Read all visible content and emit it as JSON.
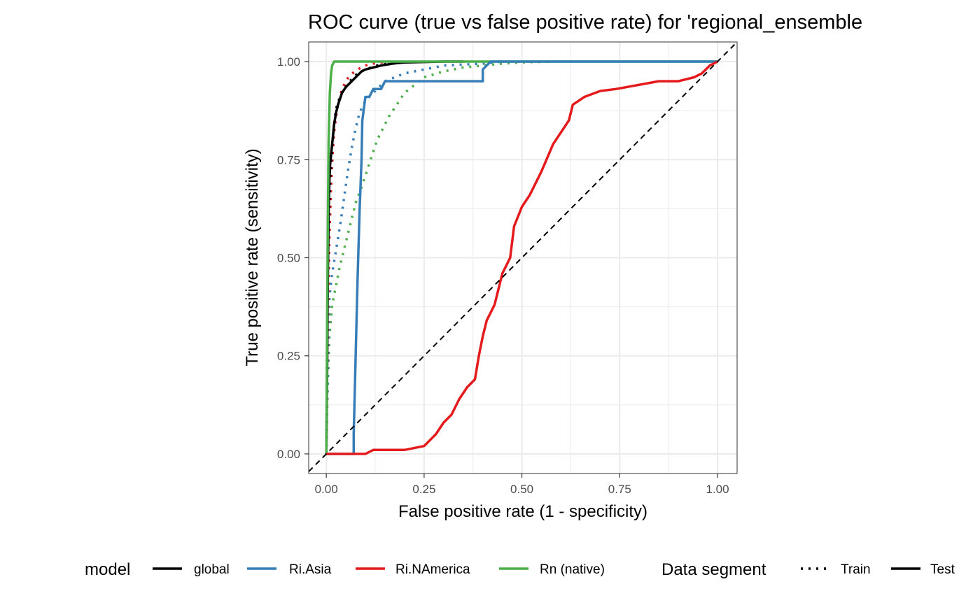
{
  "chart_data": {
    "type": "line",
    "title": "ROC curve (true vs false positive rate) for 'regional_ensemble",
    "xlabel": "False positive rate (1 - specificity)",
    "ylabel": "True positive rate (sensitivity)",
    "xlim": [
      -0.045,
      1.05
    ],
    "ylim": [
      -0.05,
      1.05
    ],
    "x_ticks": [
      0.0,
      0.25,
      0.5,
      0.75,
      1.0
    ],
    "y_ticks": [
      0.0,
      0.25,
      0.5,
      0.75,
      1.0
    ],
    "x_tick_labels": [
      "0.00",
      "0.25",
      "0.50",
      "0.75",
      "1.00"
    ],
    "y_tick_labels": [
      "0.00",
      "0.25",
      "0.50",
      "0.75",
      "1.00"
    ],
    "grid": true,
    "reference_line": {
      "from": [
        -0.045,
        -0.045
      ],
      "to": [
        1.05,
        1.05
      ],
      "style": "dashed",
      "color": "#000000"
    },
    "legend": {
      "position": "bottom",
      "model": {
        "title": "model",
        "entries": [
          {
            "label": "global",
            "color": "#000000"
          },
          {
            "label": "Ri.Asia",
            "color": "#377EB8"
          },
          {
            "label": "Ri.NAmerica",
            "color": "#E41A1C"
          },
          {
            "label": "Rn (native)",
            "color": "#4DAF4A"
          }
        ]
      },
      "segment": {
        "title": "Data segment",
        "entries": [
          {
            "label": "Train",
            "linetype": "dotted"
          },
          {
            "label": "Test",
            "linetype": "solid"
          }
        ]
      }
    },
    "series": [
      {
        "model": "Rn (native)",
        "segment": "Train",
        "color": "#4DAF4A",
        "linetype": "dotted",
        "x": [
          0,
          0.003,
          0.008,
          0.015,
          0.025,
          0.035,
          0.045,
          0.055,
          0.065,
          0.075,
          0.09,
          0.11,
          0.13,
          0.16,
          0.2,
          0.25,
          0.3,
          0.35,
          0.4,
          0.45,
          0.5,
          0.58
        ],
        "y": [
          0,
          0.15,
          0.3,
          0.38,
          0.43,
          0.48,
          0.52,
          0.56,
          0.6,
          0.64,
          0.68,
          0.74,
          0.8,
          0.86,
          0.92,
          0.96,
          0.975,
          0.985,
          0.99,
          0.995,
          0.998,
          1.0
        ]
      },
      {
        "model": "Ri.Asia",
        "segment": "Train",
        "color": "#377EB8",
        "linetype": "dotted",
        "x": [
          0,
          0.003,
          0.008,
          0.015,
          0.025,
          0.035,
          0.045,
          0.055,
          0.065,
          0.075,
          0.085,
          0.1,
          0.12,
          0.15,
          0.2,
          0.25,
          0.3,
          0.4,
          0.45
        ],
        "y": [
          0,
          0.2,
          0.4,
          0.46,
          0.52,
          0.58,
          0.65,
          0.72,
          0.78,
          0.83,
          0.87,
          0.9,
          0.92,
          0.95,
          0.97,
          0.98,
          0.99,
          0.995,
          1.0
        ]
      },
      {
        "model": "Ri.NAmerica",
        "segment": "Train",
        "color": "#E41A1C",
        "linetype": "dotted",
        "x": [
          0,
          0.002,
          0.005,
          0.008,
          0.012,
          0.016,
          0.02,
          0.025,
          0.03,
          0.035,
          0.04,
          0.05,
          0.06,
          0.08,
          0.1,
          0.12,
          0.16
        ],
        "y": [
          0,
          0.2,
          0.4,
          0.55,
          0.68,
          0.76,
          0.82,
          0.86,
          0.89,
          0.91,
          0.93,
          0.95,
          0.965,
          0.98,
          0.99,
          0.995,
          1.0
        ]
      },
      {
        "model": "global",
        "segment": "Train",
        "color": "#000000",
        "linetype": "dotted",
        "x": [
          0,
          0.002,
          0.005,
          0.01,
          0.015,
          0.02,
          0.025,
          0.035,
          0.045,
          0.06,
          0.08,
          0.1,
          0.13,
          0.16,
          0.2
        ],
        "y": [
          0,
          0.3,
          0.55,
          0.7,
          0.78,
          0.84,
          0.88,
          0.91,
          0.93,
          0.95,
          0.97,
          0.98,
          0.99,
          0.995,
          1.0
        ]
      },
      {
        "model": "global",
        "segment": "Test",
        "color": "#000000",
        "linetype": "solid",
        "x": [
          0,
          0.002,
          0.004,
          0.006,
          0.008,
          0.01,
          0.013,
          0.016,
          0.02,
          0.025,
          0.03,
          0.035,
          0.04,
          0.05,
          0.06,
          0.07,
          0.08,
          0.09,
          0.1,
          0.12,
          0.14,
          0.17,
          0.2,
          0.25,
          0.3,
          0.35
        ],
        "y": [
          0,
          0.2,
          0.45,
          0.62,
          0.7,
          0.74,
          0.77,
          0.8,
          0.84,
          0.87,
          0.89,
          0.905,
          0.92,
          0.935,
          0.945,
          0.955,
          0.965,
          0.975,
          0.98,
          0.985,
          0.99,
          0.995,
          0.998,
          0.999,
          1.0,
          1.0
        ]
      },
      {
        "model": "Rn (native)",
        "segment": "Test",
        "color": "#4DAF4A",
        "linetype": "solid",
        "x": [
          0,
          0.002,
          0.004,
          0.006,
          0.009,
          0.012,
          0.015,
          0.02,
          0.05,
          0.2,
          0.4,
          0.6,
          0.8,
          1.0
        ],
        "y": [
          0,
          0.3,
          0.6,
          0.8,
          0.92,
          0.97,
          0.99,
          1.0,
          1.0,
          1.0,
          1.0,
          1.0,
          1.0,
          1.0
        ]
      },
      {
        "model": "Ri.Asia",
        "segment": "Test",
        "color": "#377EB8",
        "linetype": "solid",
        "x": [
          0,
          0.07,
          0.07,
          0.075,
          0.08,
          0.085,
          0.09,
          0.092,
          0.1,
          0.11,
          0.12,
          0.12,
          0.14,
          0.15,
          0.4,
          0.4,
          0.42,
          0.6,
          0.8,
          1.0
        ],
        "y": [
          0,
          0.0,
          0.05,
          0.25,
          0.45,
          0.62,
          0.75,
          0.85,
          0.91,
          0.91,
          0.93,
          0.93,
          0.93,
          0.95,
          0.95,
          0.98,
          1.0,
          1.0,
          1.0,
          1.0
        ]
      },
      {
        "model": "Ri.NAmerica",
        "segment": "Test",
        "color": "#E41A1C",
        "linetype": "solid",
        "x": [
          0,
          0.06,
          0.1,
          0.12,
          0.15,
          0.2,
          0.25,
          0.28,
          0.3,
          0.32,
          0.34,
          0.36,
          0.38,
          0.39,
          0.4,
          0.41,
          0.42,
          0.43,
          0.45,
          0.47,
          0.48,
          0.5,
          0.52,
          0.55,
          0.58,
          0.6,
          0.62,
          0.63,
          0.66,
          0.7,
          0.74,
          0.85,
          0.9,
          0.94,
          0.96,
          0.98,
          1.0
        ],
        "y": [
          0,
          0.0,
          0.0,
          0.01,
          0.01,
          0.01,
          0.02,
          0.05,
          0.08,
          0.1,
          0.14,
          0.17,
          0.19,
          0.25,
          0.3,
          0.34,
          0.36,
          0.38,
          0.46,
          0.5,
          0.58,
          0.63,
          0.66,
          0.72,
          0.79,
          0.82,
          0.85,
          0.89,
          0.91,
          0.925,
          0.93,
          0.95,
          0.95,
          0.96,
          0.97,
          0.99,
          1.0
        ]
      }
    ]
  }
}
